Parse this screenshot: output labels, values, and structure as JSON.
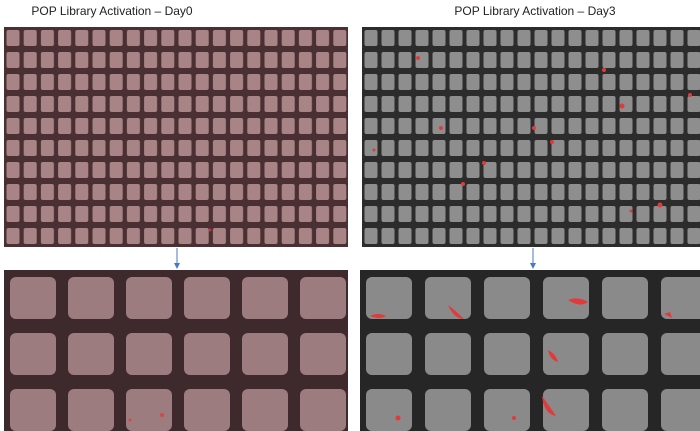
{
  "panels": [
    {
      "title": "POP Library Activation – Day0"
    },
    {
      "title": "POP Library Activation – Day3"
    }
  ]
}
